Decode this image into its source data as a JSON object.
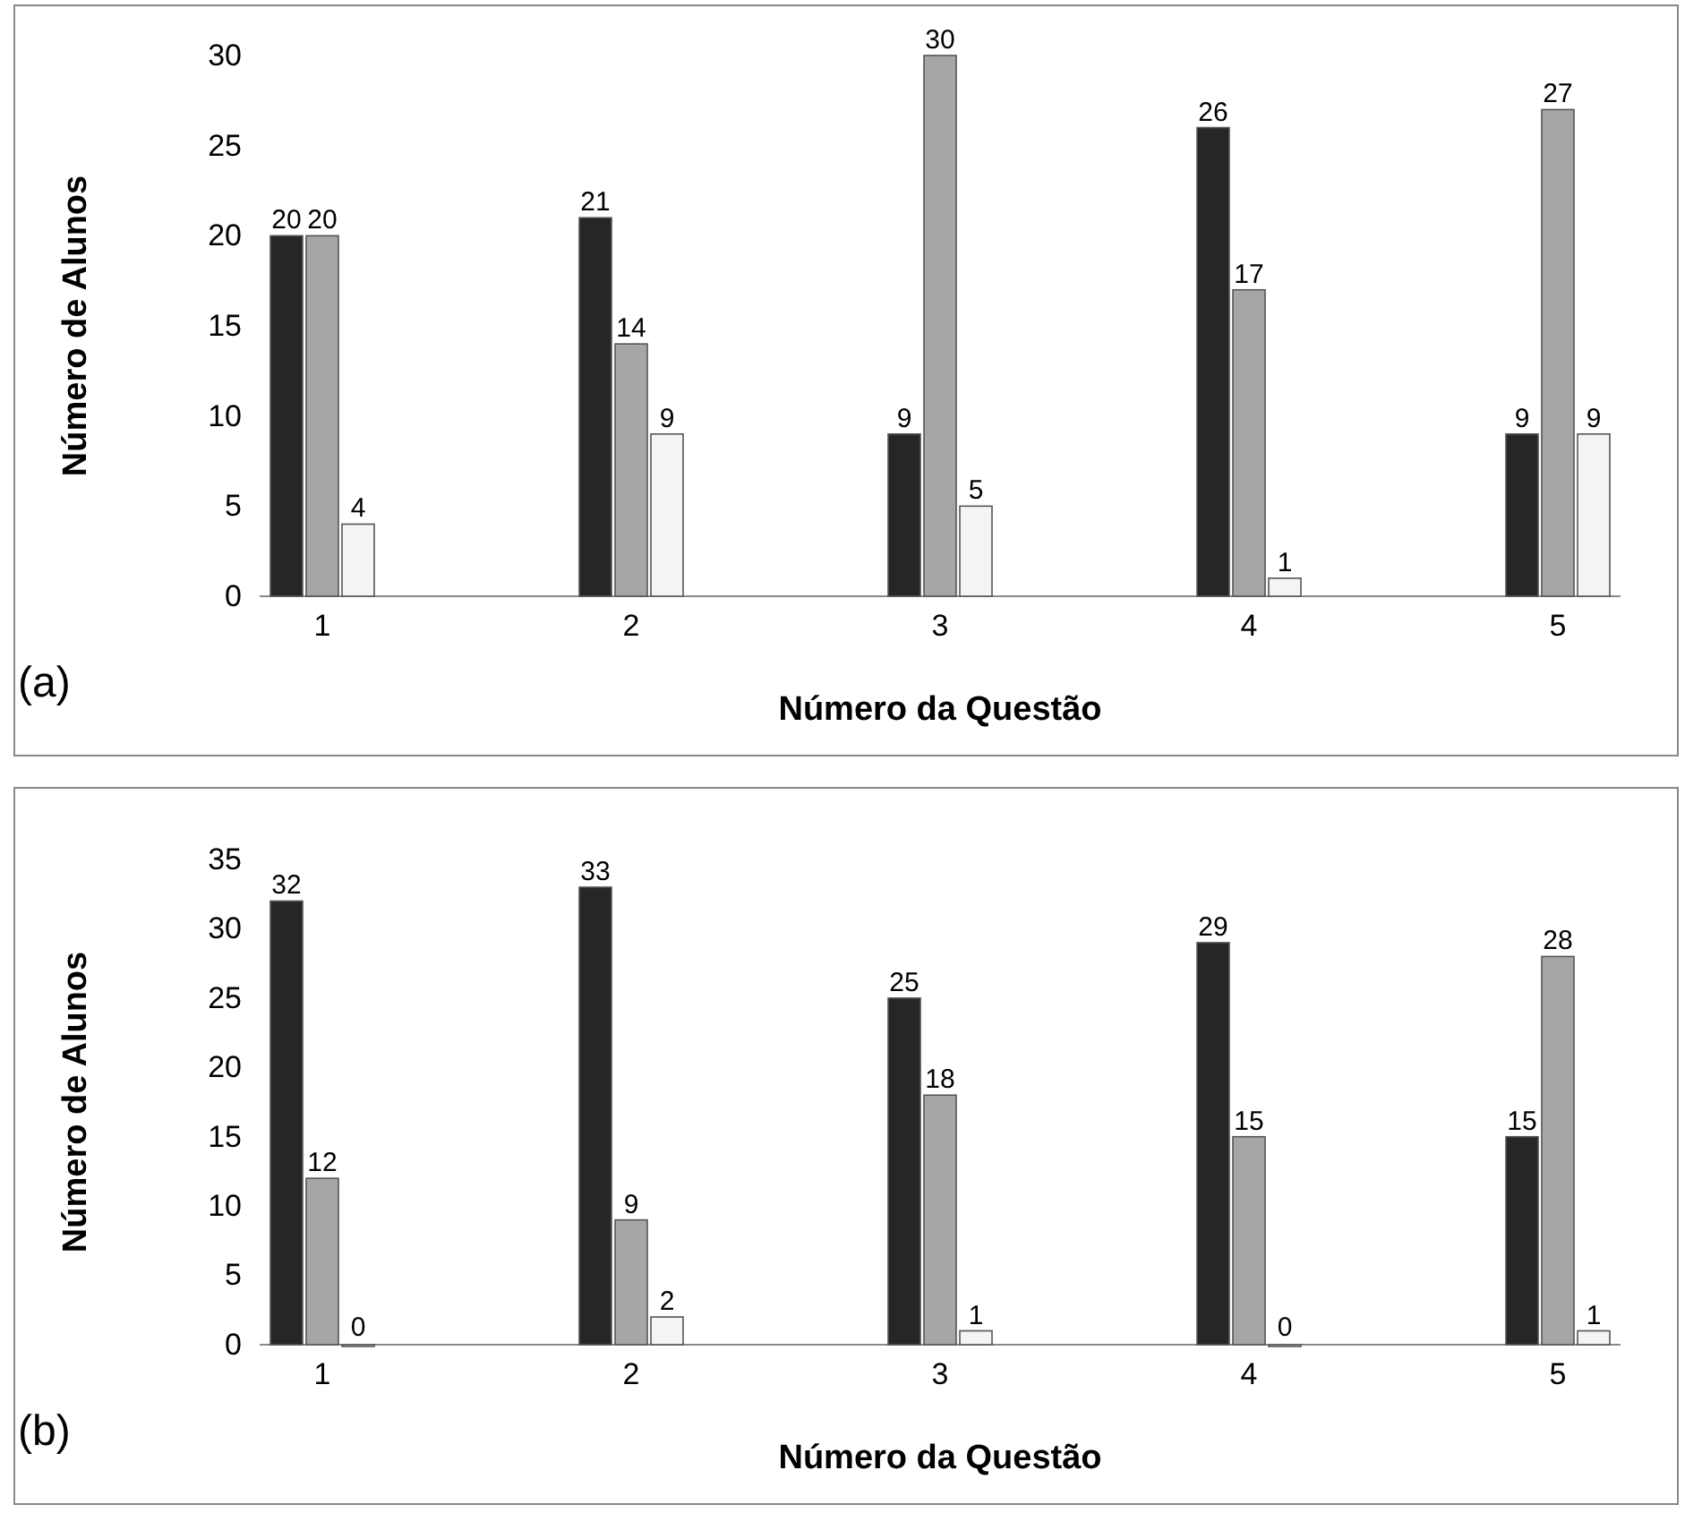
{
  "chart_data": [
    {
      "type": "bar",
      "xlabel": "Número da Questão",
      "ylabel": "Número de Alunos",
      "categories": [
        "1",
        "2",
        "3",
        "4",
        "5"
      ],
      "series": [
        {
          "color": "#262626",
          "values": [
            20,
            21,
            9,
            26,
            9
          ]
        },
        {
          "color": "#a6a6a6",
          "values": [
            20,
            14,
            30,
            17,
            27
          ]
        },
        {
          "color": "#f4f4f4",
          "values": [
            4,
            9,
            5,
            1,
            9
          ]
        }
      ],
      "ylim": [
        0,
        30
      ],
      "yticks": [
        0,
        5,
        10,
        15,
        20,
        25,
        30
      ],
      "grid": false,
      "data_labels": true,
      "annotations": [
        "(a)"
      ]
    },
    {
      "type": "bar",
      "xlabel": "Número da Questão",
      "ylabel": "Número de Alunos",
      "categories": [
        "1",
        "2",
        "3",
        "4",
        "5"
      ],
      "series": [
        {
          "color": "#262626",
          "values": [
            32,
            33,
            25,
            29,
            15
          ]
        },
        {
          "color": "#a6a6a6",
          "values": [
            12,
            9,
            18,
            15,
            28
          ]
        },
        {
          "color": "#f4f4f4",
          "values": [
            0,
            2,
            1,
            0,
            1
          ]
        }
      ],
      "ylim": [
        0,
        35
      ],
      "yticks": [
        0,
        5,
        10,
        15,
        20,
        25,
        30,
        35
      ],
      "grid": false,
      "data_labels": true,
      "annotations": [
        "(b)"
      ]
    }
  ]
}
